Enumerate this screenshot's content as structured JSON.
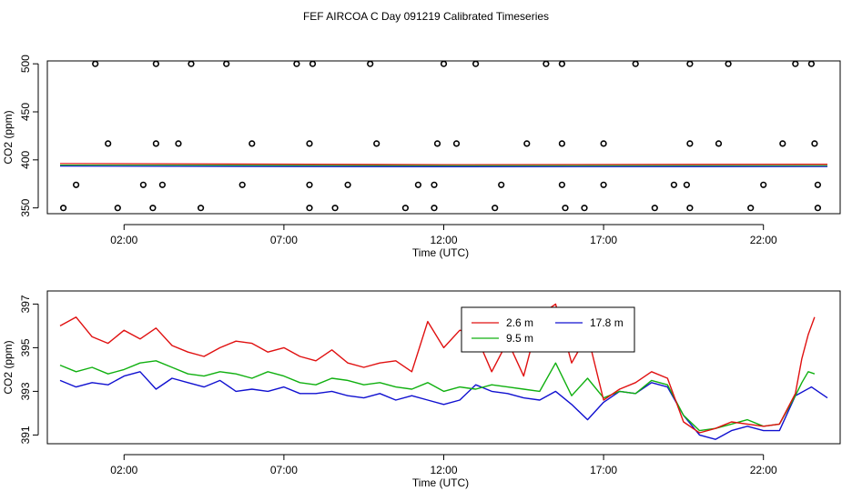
{
  "title": "FEF AIRCOA C  Day 091219  Calibrated Timeseries",
  "colors": {
    "red": "#e01010",
    "green": "#10b010",
    "blue": "#1010d0",
    "black": "#000000"
  },
  "chart_data": [
    {
      "type": "scatter",
      "xlabel": "Time (UTC)",
      "ylabel": "CO2 (ppm)",
      "x_unit": "hours UTC",
      "xlim": [
        -0.4,
        24.4
      ],
      "ylim": [
        344,
        503
      ],
      "x_ticks": [
        2,
        7,
        12,
        17,
        22
      ],
      "x_tick_labels": [
        "02:00",
        "07:00",
        "12:00",
        "17:00",
        "22:00"
      ],
      "y_ticks": [
        350,
        400,
        450,
        500
      ],
      "y_tick_labels": [
        "350",
        "400",
        "450",
        "500"
      ],
      "scatter_points": [
        [
          1.1,
          500
        ],
        [
          3.0,
          500
        ],
        [
          4.1,
          500
        ],
        [
          5.2,
          500
        ],
        [
          7.4,
          500
        ],
        [
          7.9,
          500
        ],
        [
          9.7,
          500
        ],
        [
          12.0,
          500
        ],
        [
          13.0,
          500
        ],
        [
          15.2,
          500
        ],
        [
          15.7,
          500
        ],
        [
          18.0,
          500
        ],
        [
          19.7,
          500
        ],
        [
          20.9,
          500
        ],
        [
          23.0,
          500
        ],
        [
          23.5,
          500
        ],
        [
          1.5,
          417
        ],
        [
          3.0,
          417
        ],
        [
          3.7,
          417
        ],
        [
          6.0,
          417
        ],
        [
          7.8,
          417
        ],
        [
          9.9,
          417
        ],
        [
          11.8,
          417
        ],
        [
          12.4,
          417
        ],
        [
          14.6,
          417
        ],
        [
          15.7,
          417
        ],
        [
          17.0,
          417
        ],
        [
          19.7,
          417
        ],
        [
          20.6,
          417
        ],
        [
          22.6,
          417
        ],
        [
          23.6,
          417
        ],
        [
          0.5,
          374
        ],
        [
          2.6,
          374
        ],
        [
          3.2,
          374
        ],
        [
          5.7,
          374
        ],
        [
          7.8,
          374
        ],
        [
          9.0,
          374
        ],
        [
          11.2,
          374
        ],
        [
          11.7,
          374
        ],
        [
          13.8,
          374
        ],
        [
          15.7,
          374
        ],
        [
          17.0,
          374
        ],
        [
          19.2,
          374
        ],
        [
          19.6,
          374
        ],
        [
          22.0,
          374
        ],
        [
          23.7,
          374
        ],
        [
          0.1,
          350
        ],
        [
          1.8,
          350
        ],
        [
          2.9,
          350
        ],
        [
          4.4,
          350
        ],
        [
          7.8,
          350
        ],
        [
          8.6,
          350
        ],
        [
          10.8,
          350
        ],
        [
          11.7,
          350
        ],
        [
          13.6,
          350
        ],
        [
          15.8,
          350
        ],
        [
          16.4,
          350
        ],
        [
          18.6,
          350
        ],
        [
          19.7,
          350
        ],
        [
          21.6,
          350
        ],
        [
          23.7,
          350
        ]
      ],
      "series": [
        {
          "color": "red",
          "y_start": 396.2,
          "y_mid": 395.0,
          "y_end": 395.5
        },
        {
          "color": "green",
          "y_start": 394.5,
          "y_mid": 394.0,
          "y_end": 394.0
        },
        {
          "color": "blue",
          "y_start": 393.5,
          "y_mid": 392.8,
          "y_end": 393.0
        }
      ]
    },
    {
      "type": "line",
      "xlabel": "Time (UTC)",
      "ylabel": "CO2 (ppm)",
      "x_unit": "hours UTC",
      "xlim": [
        -0.4,
        24.4
      ],
      "ylim": [
        390.6,
        397.6
      ],
      "x_ticks": [
        2,
        7,
        12,
        17,
        22
      ],
      "x_tick_labels": [
        "02:00",
        "07:00",
        "12:00",
        "17:00",
        "22:00"
      ],
      "y_ticks": [
        391,
        393,
        395,
        397
      ],
      "y_tick_labels": [
        "391",
        "393",
        "395",
        "397"
      ],
      "legend": {
        "position": "top-center",
        "entries": [
          {
            "label": "2.6 m",
            "color": "red"
          },
          {
            "label": "17.8 m",
            "color": "blue"
          },
          {
            "label": "9.5 m",
            "color": "green"
          }
        ]
      },
      "series": [
        {
          "name": "2.6 m",
          "color": "red",
          "x": [
            0.0,
            0.5,
            1.0,
            1.5,
            2.0,
            2.5,
            3.0,
            3.5,
            4.0,
            4.5,
            5.0,
            5.5,
            6.0,
            6.5,
            7.0,
            7.5,
            8.0,
            8.5,
            9.0,
            9.5,
            10.0,
            10.5,
            11.0,
            11.5,
            12.0,
            12.5,
            13.0,
            13.5,
            14.0,
            14.5,
            15.0,
            15.5,
            16.0,
            16.5,
            17.0,
            17.5,
            18.0,
            18.5,
            19.0,
            19.5,
            20.0,
            20.5,
            21.0,
            21.5,
            22.0,
            22.5,
            23.0,
            23.2,
            23.4,
            23.6
          ],
          "y": [
            396.0,
            396.4,
            395.5,
            395.2,
            395.8,
            395.4,
            395.9,
            395.1,
            394.8,
            394.6,
            395.0,
            395.3,
            395.2,
            394.8,
            395.0,
            394.6,
            394.4,
            394.9,
            394.3,
            394.1,
            394.3,
            394.4,
            393.9,
            396.2,
            395.0,
            395.8,
            395.6,
            393.9,
            395.3,
            393.7,
            396.5,
            397.0,
            394.3,
            395.6,
            392.6,
            393.1,
            393.4,
            393.9,
            393.6,
            391.6,
            391.1,
            391.3,
            391.6,
            391.5,
            391.4,
            391.5,
            392.9,
            394.5,
            395.6,
            396.4
          ]
        },
        {
          "name": "9.5 m",
          "color": "green",
          "x": [
            0.0,
            0.5,
            1.0,
            1.5,
            2.0,
            2.5,
            3.0,
            3.5,
            4.0,
            4.5,
            5.0,
            5.5,
            6.0,
            6.5,
            7.0,
            7.5,
            8.0,
            8.5,
            9.0,
            9.5,
            10.0,
            10.5,
            11.0,
            11.5,
            12.0,
            12.5,
            13.0,
            13.5,
            14.0,
            14.5,
            15.0,
            15.5,
            16.0,
            16.5,
            17.0,
            17.5,
            18.0,
            18.5,
            19.0,
            19.5,
            20.0,
            20.5,
            21.0,
            21.5,
            22.0,
            22.5,
            23.0,
            23.2,
            23.4,
            23.6
          ],
          "y": [
            394.2,
            393.9,
            394.1,
            393.8,
            394.0,
            394.3,
            394.4,
            394.1,
            393.8,
            393.7,
            393.9,
            393.8,
            393.6,
            393.9,
            393.7,
            393.4,
            393.3,
            393.6,
            393.5,
            393.3,
            393.4,
            393.2,
            393.1,
            393.4,
            393.0,
            393.2,
            393.1,
            393.3,
            393.2,
            393.1,
            393.0,
            394.3,
            392.8,
            393.6,
            392.7,
            393.0,
            392.9,
            393.5,
            393.3,
            391.9,
            391.2,
            391.3,
            391.5,
            391.7,
            391.4,
            391.5,
            392.8,
            393.4,
            393.9,
            393.8
          ]
        },
        {
          "name": "17.8 m",
          "color": "blue",
          "x": [
            0.0,
            0.5,
            1.0,
            1.5,
            2.0,
            2.5,
            3.0,
            3.5,
            4.0,
            4.5,
            5.0,
            5.5,
            6.0,
            6.5,
            7.0,
            7.5,
            8.0,
            8.5,
            9.0,
            9.5,
            10.0,
            10.5,
            11.0,
            11.5,
            12.0,
            12.5,
            13.0,
            13.5,
            14.0,
            14.5,
            15.0,
            15.5,
            16.0,
            16.5,
            17.0,
            17.5,
            18.0,
            18.5,
            19.0,
            19.5,
            20.0,
            20.5,
            21.0,
            21.5,
            22.0,
            22.5,
            23.0,
            23.5,
            24.0
          ],
          "y": [
            393.5,
            393.2,
            393.4,
            393.3,
            393.7,
            393.9,
            393.1,
            393.6,
            393.4,
            393.2,
            393.5,
            393.0,
            393.1,
            393.0,
            393.2,
            392.9,
            392.9,
            393.0,
            392.8,
            392.7,
            392.9,
            392.6,
            392.8,
            392.6,
            392.4,
            392.6,
            393.3,
            393.0,
            392.9,
            392.7,
            392.6,
            393.0,
            392.4,
            391.7,
            392.5,
            393.0,
            392.9,
            393.4,
            393.2,
            391.9,
            391.0,
            390.8,
            391.2,
            391.4,
            391.2,
            391.2,
            392.8,
            393.2,
            392.7
          ]
        }
      ]
    }
  ]
}
